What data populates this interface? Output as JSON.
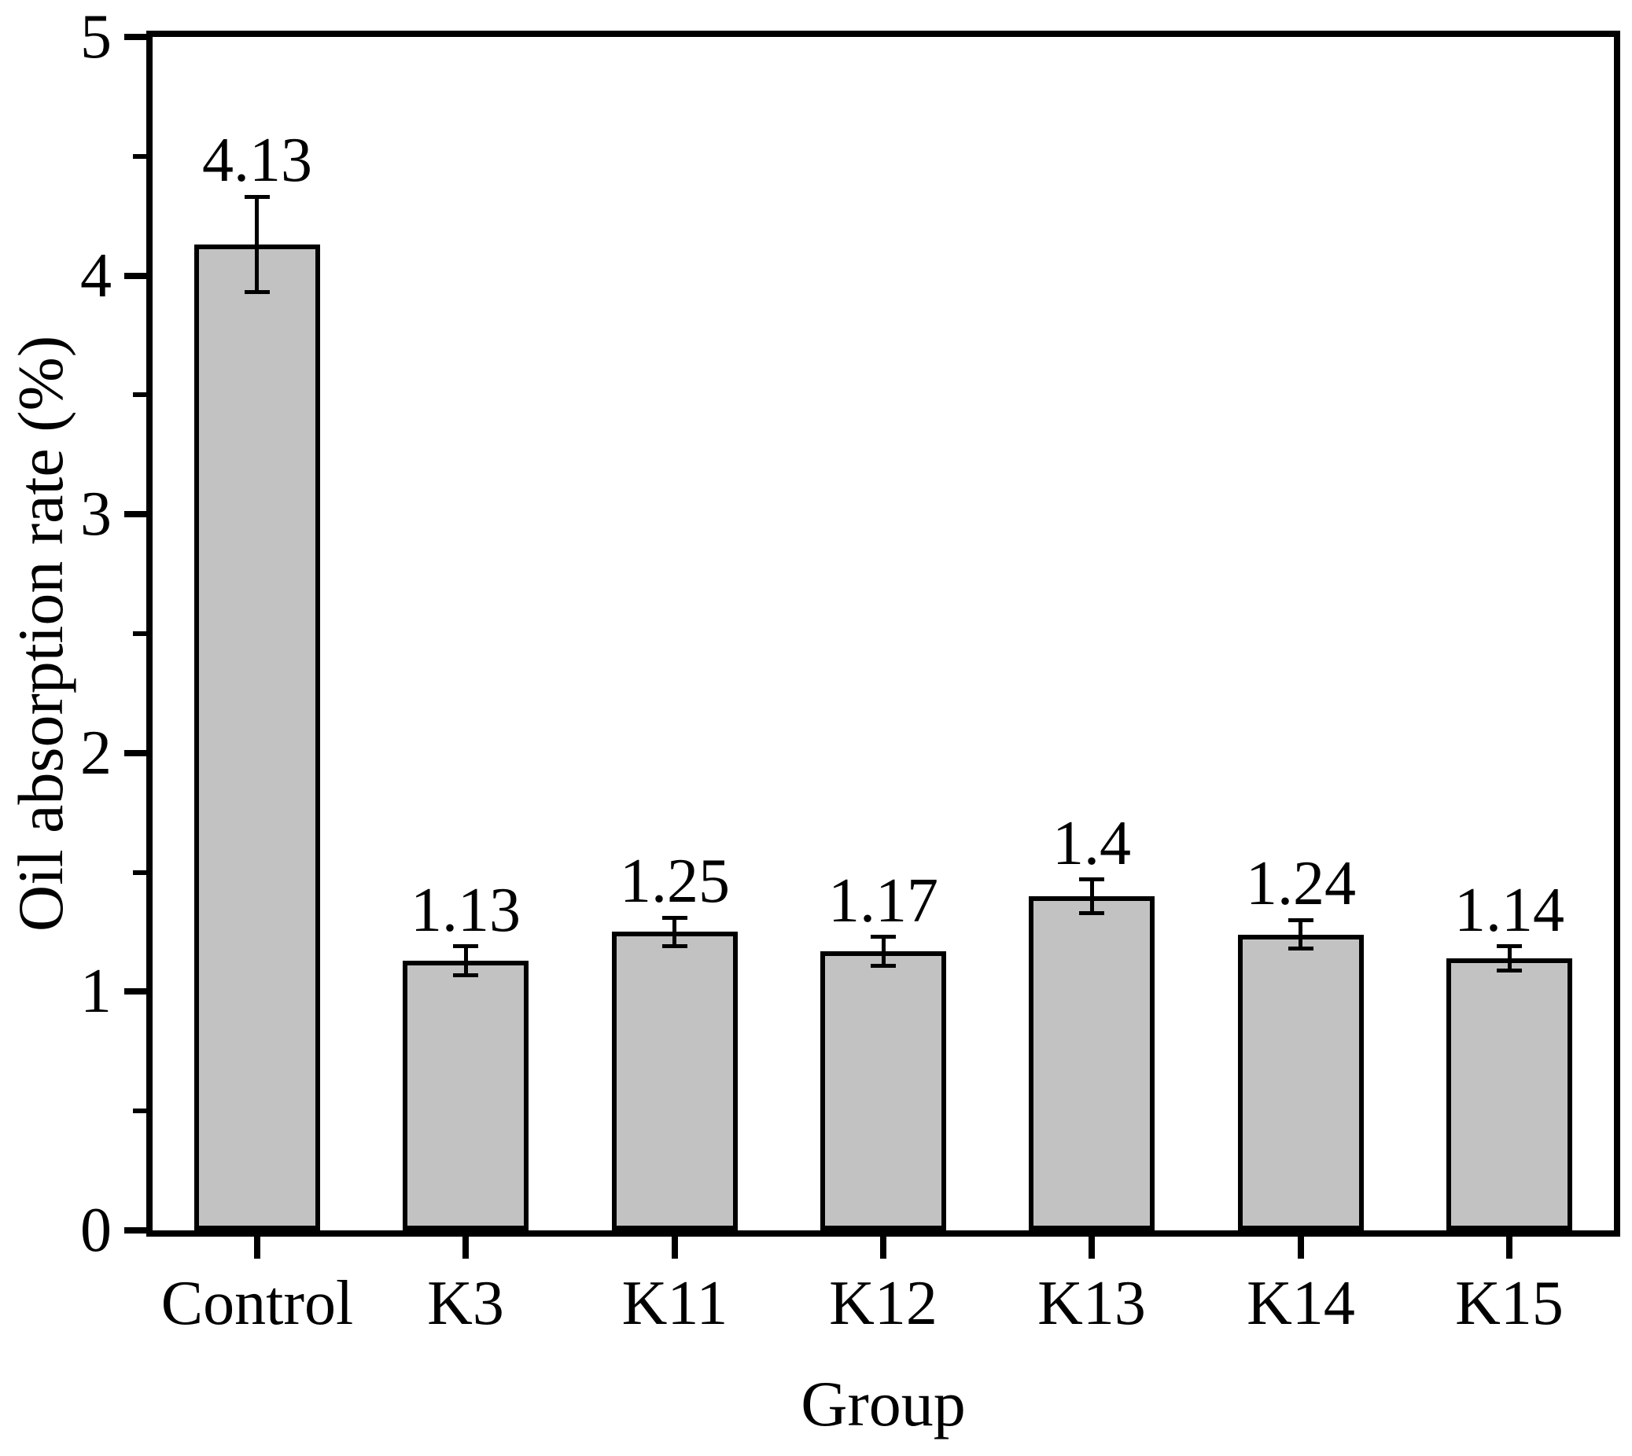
{
  "chart_data": {
    "type": "bar",
    "title": "",
    "categories": [
      "Control",
      "K3",
      "K11",
      "K12",
      "K13",
      "K14",
      "K15"
    ],
    "values": [
      4.13,
      1.13,
      1.25,
      1.17,
      1.4,
      1.24,
      1.14
    ],
    "value_labels": [
      "4.13",
      "1.13",
      "1.25",
      "1.17",
      "1.4",
      "1.24",
      "1.14"
    ],
    "errors": [
      0.2,
      0.06,
      0.06,
      0.06,
      0.07,
      0.06,
      0.05
    ],
    "xlabel": "Group",
    "ylabel": "Oil absorption rate (%)",
    "ylim": [
      0,
      5
    ],
    "ytick_labels": [
      "0",
      "1",
      "2",
      "3",
      "4",
      "5"
    ],
    "ytick_values": [
      0,
      1,
      2,
      3,
      4,
      5
    ],
    "minor_ytick_values": [
      0.5,
      1.5,
      2.5,
      3.5,
      4.5
    ],
    "grid": false,
    "legend": "none",
    "bar_color": "#c2c2c2",
    "edge_color": "#000000",
    "text_color": "#000000",
    "background_color": "#ffffff"
  }
}
